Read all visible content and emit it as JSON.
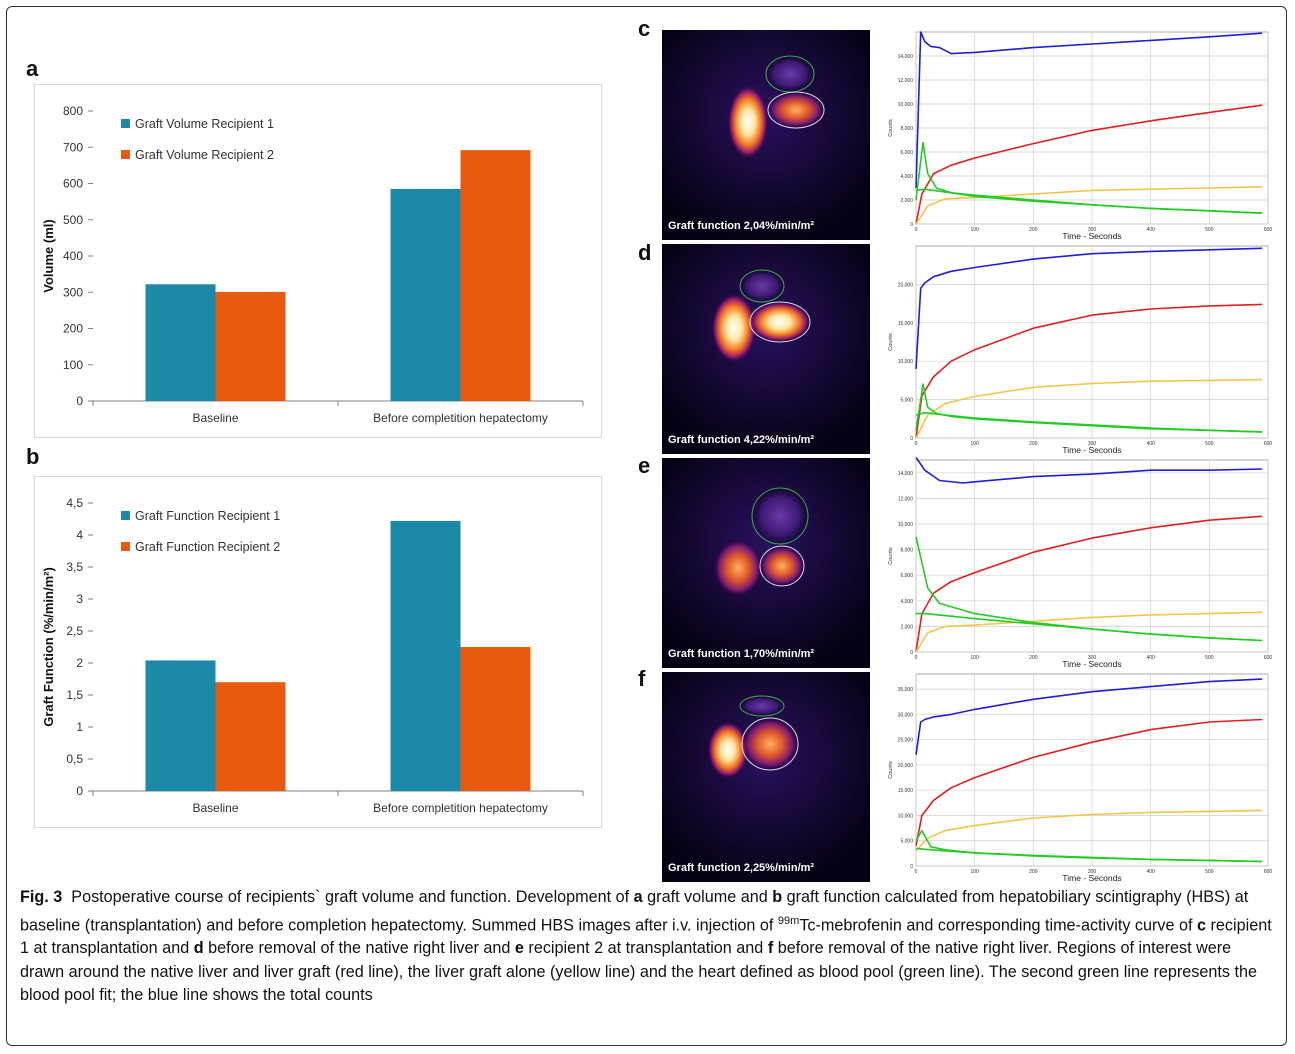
{
  "panels": {
    "a_label": "a",
    "b_label": "b",
    "c_label": "c",
    "d_label": "d",
    "e_label": "e",
    "f_label": "f"
  },
  "chart_data": [
    {
      "type": "bar",
      "categories": [
        "Baseline",
        "Before completition hepatectomy"
      ],
      "series": [
        {
          "name": "Graft Volume Recipient 1",
          "values": [
            322,
            585
          ],
          "color": "#1b8aa8"
        },
        {
          "name": "Graft Volume Recipient 2",
          "values": [
            301,
            692
          ],
          "color": "#e85a10"
        }
      ],
      "xlabel": "",
      "ylabel": "Volume (ml)",
      "ylim": [
        0,
        800
      ],
      "yticks": [
        "0",
        "100",
        "200",
        "300",
        "400",
        "500",
        "600",
        "700",
        "800"
      ],
      "legend": "top-left",
      "grid": false
    },
    {
      "type": "bar",
      "categories": [
        "Baseline",
        "Before completition hepatectomy"
      ],
      "series": [
        {
          "name": "Graft Function Recipient 1",
          "values": [
            2.04,
            4.22
          ],
          "color": "#1b8aa8"
        },
        {
          "name": "Graft Function Recipient 2",
          "values": [
            1.7,
            2.25
          ],
          "color": "#e85a10"
        }
      ],
      "xlabel": "",
      "ylabel": "Graft Function (%/min/m²)",
      "ylim": [
        0,
        4.5
      ],
      "yticks": [
        "0",
        "0,5",
        "1",
        "1,5",
        "2",
        "2,5",
        "3",
        "3,5",
        "4",
        "4,5"
      ],
      "legend": "top-left",
      "grid": false
    },
    {
      "type": "line",
      "panel": "c",
      "xlabel": "Time - Seconds",
      "ylabel": "Counts",
      "xlim": [
        0,
        600
      ],
      "ylim": [
        0,
        16000
      ],
      "xticks": [
        "0",
        "100",
        "200",
        "300",
        "400",
        "500",
        "600"
      ],
      "yticks": [
        "0",
        "2,000",
        "4,000",
        "6,000",
        "8,000",
        "10,000",
        "12,000",
        "14,000"
      ],
      "series": [
        {
          "color": "blue",
          "x": [
            0,
            8,
            15,
            25,
            40,
            60,
            100,
            200,
            300,
            400,
            500,
            590
          ],
          "y": [
            3000,
            16000,
            15200,
            14800,
            14700,
            14200,
            14300,
            14700,
            15000,
            15300,
            15600,
            15900
          ]
        },
        {
          "color": "red",
          "x": [
            0,
            10,
            30,
            60,
            100,
            200,
            300,
            400,
            500,
            590
          ],
          "y": [
            0,
            2500,
            4200,
            4900,
            5500,
            6700,
            7800,
            8600,
            9300,
            9900
          ]
        },
        {
          "color": "yellow",
          "x": [
            0,
            20,
            50,
            100,
            200,
            300,
            400,
            500,
            590
          ],
          "y": [
            0,
            1500,
            2100,
            2200,
            2500,
            2800,
            2900,
            3000,
            3100
          ]
        },
        {
          "color": "green",
          "x": [
            0,
            12,
            20,
            35,
            60,
            100,
            200,
            300,
            400,
            500,
            590
          ],
          "y": [
            2000,
            6800,
            4200,
            3000,
            2600,
            2300,
            1900,
            1600,
            1300,
            1100,
            900
          ]
        },
        {
          "color": "green",
          "x": [
            0,
            15,
            60,
            100,
            200,
            300,
            400,
            500,
            590
          ],
          "y": [
            2800,
            2900,
            2600,
            2400,
            2000,
            1600,
            1300,
            1100,
            900
          ]
        }
      ]
    },
    {
      "type": "line",
      "panel": "d",
      "xlabel": "Time - Seconds",
      "ylabel": "Counts",
      "xlim": [
        0,
        600
      ],
      "ylim": [
        0,
        25000
      ],
      "xticks": [
        "0",
        "100",
        "200",
        "300",
        "400",
        "500",
        "600"
      ],
      "yticks": [
        "0",
        "5,000",
        "10,000",
        "15,000",
        "20,000"
      ],
      "series": [
        {
          "color": "blue",
          "x": [
            0,
            8,
            15,
            30,
            60,
            100,
            200,
            300,
            400,
            500,
            590
          ],
          "y": [
            9000,
            19500,
            20200,
            21000,
            21700,
            22200,
            23300,
            24000,
            24300,
            24500,
            24700
          ]
        },
        {
          "color": "red",
          "x": [
            0,
            10,
            30,
            60,
            100,
            200,
            300,
            400,
            500,
            590
          ],
          "y": [
            0,
            5500,
            8000,
            10000,
            11500,
            14300,
            16000,
            16800,
            17200,
            17400
          ]
        },
        {
          "color": "yellow",
          "x": [
            0,
            20,
            50,
            100,
            200,
            300,
            400,
            500,
            590
          ],
          "y": [
            0,
            3000,
            4500,
            5400,
            6600,
            7100,
            7400,
            7500,
            7600
          ]
        },
        {
          "color": "green",
          "x": [
            0,
            12,
            20,
            35,
            60,
            100,
            200,
            300,
            400,
            500,
            590
          ],
          "y": [
            1000,
            7000,
            4000,
            3200,
            2800,
            2500,
            2000,
            1600,
            1200,
            1000,
            800
          ]
        },
        {
          "color": "green",
          "x": [
            0,
            15,
            60,
            100,
            200,
            300,
            400,
            500,
            590
          ],
          "y": [
            3000,
            3300,
            2900,
            2600,
            2100,
            1700,
            1300,
            1000,
            800
          ]
        }
      ]
    },
    {
      "type": "line",
      "panel": "e",
      "xlabel": "Time - Seconds",
      "ylabel": "Counts",
      "xlim": [
        0,
        600
      ],
      "ylim": [
        0,
        15000
      ],
      "xticks": [
        "0",
        "100",
        "200",
        "300",
        "400",
        "500",
        "600"
      ],
      "yticks": [
        "0",
        "2,000",
        "4,000",
        "6,000",
        "8,000",
        "10,000",
        "12,000",
        "14,000"
      ],
      "series": [
        {
          "color": "blue",
          "x": [
            0,
            15,
            40,
            80,
            100,
            200,
            300,
            400,
            500,
            590
          ],
          "y": [
            15200,
            14200,
            13400,
            13200,
            13300,
            13700,
            13900,
            14200,
            14200,
            14300
          ]
        },
        {
          "color": "red",
          "x": [
            0,
            10,
            30,
            60,
            100,
            200,
            300,
            400,
            500,
            590
          ],
          "y": [
            0,
            3000,
            4600,
            5500,
            6200,
            7800,
            8900,
            9700,
            10300,
            10600
          ]
        },
        {
          "color": "yellow",
          "x": [
            0,
            20,
            50,
            100,
            200,
            300,
            400,
            500,
            590
          ],
          "y": [
            0,
            1500,
            2000,
            2100,
            2400,
            2700,
            2900,
            3000,
            3100
          ]
        },
        {
          "color": "green",
          "x": [
            0,
            10,
            20,
            40,
            70,
            100,
            200,
            300,
            400,
            500,
            590
          ],
          "y": [
            9000,
            7000,
            5000,
            3800,
            3400,
            3000,
            2300,
            1800,
            1400,
            1100,
            900
          ]
        },
        {
          "color": "green",
          "x": [
            0,
            15,
            60,
            100,
            200,
            300,
            400,
            500,
            590
          ],
          "y": [
            3000,
            3000,
            2800,
            2600,
            2200,
            1800,
            1400,
            1100,
            900
          ]
        }
      ]
    },
    {
      "type": "line",
      "panel": "f",
      "xlabel": "Time - Seconds",
      "ylabel": "Counts",
      "xlim": [
        0,
        600
      ],
      "ylim": [
        0,
        38000
      ],
      "xticks": [
        "0",
        "100",
        "200",
        "300",
        "400",
        "500",
        "600"
      ],
      "yticks": [
        "0",
        "5,000",
        "10,000",
        "15,000",
        "20,000",
        "25,000",
        "30,000",
        "35,000"
      ],
      "series": [
        {
          "color": "blue",
          "x": [
            0,
            8,
            15,
            30,
            60,
            100,
            200,
            300,
            400,
            500,
            590
          ],
          "y": [
            22000,
            28500,
            29000,
            29500,
            30000,
            31000,
            33000,
            34500,
            35500,
            36500,
            37000
          ]
        },
        {
          "color": "red",
          "x": [
            0,
            10,
            30,
            60,
            100,
            200,
            300,
            400,
            500,
            590
          ],
          "y": [
            4000,
            10000,
            13000,
            15500,
            17500,
            21500,
            24500,
            27000,
            28500,
            29000
          ]
        },
        {
          "color": "yellow",
          "x": [
            0,
            20,
            50,
            100,
            200,
            300,
            400,
            500,
            590
          ],
          "y": [
            3000,
            5500,
            7000,
            8000,
            9500,
            10200,
            10600,
            10800,
            11000
          ]
        },
        {
          "color": "green",
          "x": [
            0,
            10,
            25,
            50,
            100,
            200,
            300,
            400,
            500,
            590
          ],
          "y": [
            5000,
            7000,
            3800,
            3200,
            2600,
            2000,
            1600,
            1300,
            1100,
            900
          ]
        },
        {
          "color": "green",
          "x": [
            0,
            15,
            60,
            100,
            200,
            300,
            400,
            500,
            590
          ],
          "y": [
            3500,
            3300,
            2900,
            2600,
            2100,
            1700,
            1300,
            1100,
            900
          ]
        }
      ]
    }
  ],
  "scintigraphy": {
    "c": "Graft function 2,04%/min/m²",
    "d": "Graft function 4,22%/min/m²",
    "e": "Graft function 1,70%/min/m²",
    "f": "Graft function 2,25%/min/m²"
  },
  "caption": {
    "fig_label": "Fig. 3",
    "t1": "Postoperative course of recipients` graft volume and function. Development of ",
    "a": "a",
    "t2": " graft volume and ",
    "b": "b",
    "t3": " graft function calculated from hepatobiliary scintigraphy (HBS) at baseline (transplantation) and before completion hepatectomy. Summed HBS images after i.v. injection of ",
    "sup": "99m",
    "t4": "Tc-mebrofenin and corresponding time-activity curve of ",
    "c": "c",
    "t5": " recipient 1 at transplantation and ",
    "d": "d",
    "t6": " before removal of the native right liver and ",
    "e": "e",
    "t7": " recipient 2 at transplantation and ",
    "f": "f",
    "t8": " before removal of the native right liver. Regions of interest were drawn around the native liver and liver graft (red line), the liver graft alone (yellow line) and the heart defined as blood pool (green line). The second green line represents the blood pool fit; the blue line shows the total counts"
  }
}
